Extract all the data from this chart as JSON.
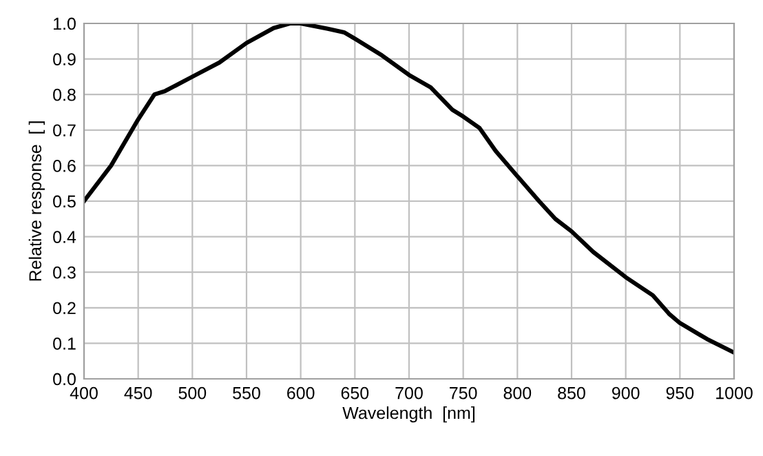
{
  "chart_data": {
    "type": "line",
    "xlabel": "Wavelength  [nm]",
    "ylabel": "Relative response  [ ]",
    "x": [
      400,
      425,
      450,
      465,
      475,
      500,
      525,
      550,
      575,
      590,
      600,
      625,
      640,
      650,
      675,
      700,
      720,
      740,
      750,
      765,
      780,
      800,
      820,
      835,
      850,
      870,
      900,
      925,
      940,
      950,
      975,
      1000
    ],
    "series": [
      {
        "color": "#000000",
        "values": [
          0.5,
          0.6,
          0.73,
          0.8,
          0.81,
          0.85,
          0.89,
          0.945,
          0.987,
          1.0,
          1.0,
          0.985,
          0.975,
          0.957,
          0.91,
          0.855,
          0.82,
          0.757,
          0.738,
          0.706,
          0.641,
          0.57,
          0.5,
          0.45,
          0.415,
          0.357,
          0.286,
          0.235,
          0.183,
          0.157,
          0.112,
          0.074
        ]
      }
    ],
    "xlim": [
      400,
      1000
    ],
    "xticks": [
      400,
      450,
      500,
      550,
      600,
      650,
      700,
      750,
      800,
      850,
      900,
      950,
      1000
    ],
    "ylim": [
      0,
      1.0
    ],
    "yticks": [
      {
        "value": 0,
        "label": "0.0"
      },
      {
        "value": 0.1,
        "label": "0.1"
      },
      {
        "value": 0.2,
        "label": "0.2"
      },
      {
        "value": 0.3,
        "label": "0.3"
      },
      {
        "value": 0.4,
        "label": "0.4"
      },
      {
        "value": 0.5,
        "label": "0.5"
      },
      {
        "value": 0.6,
        "label": "0.6"
      },
      {
        "value": 0.7,
        "label": "0.7"
      },
      {
        "value": 0.8,
        "label": "0.8"
      },
      {
        "value": 0.9,
        "label": "0.9"
      },
      {
        "value": 1.0,
        "label": "1.0"
      }
    ],
    "grid": true,
    "marker": "none",
    "line_style": "solid",
    "legend": false
  }
}
